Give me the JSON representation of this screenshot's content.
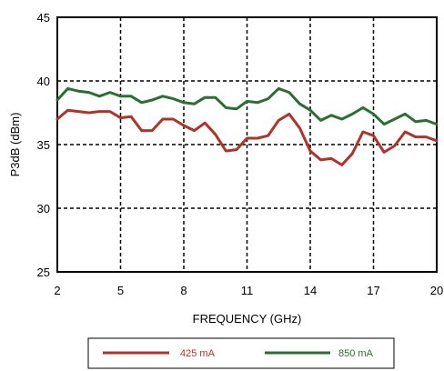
{
  "chart_data": {
    "type": "line",
    "title": "",
    "xlabel": "FREQUENCY (GHz)",
    "ylabel": "P3dB (dBm)",
    "xlim": [
      2,
      20
    ],
    "ylim": [
      25,
      45
    ],
    "xticks": [
      2,
      5,
      8,
      11,
      14,
      17,
      20
    ],
    "yticks": [
      25,
      30,
      35,
      40,
      45
    ],
    "xtick_labels": [
      "2",
      "5",
      "8",
      "11",
      "14",
      "17",
      "20"
    ],
    "ytick_labels": [
      "25",
      "30",
      "35",
      "40",
      "45"
    ],
    "grid": true,
    "legend_position": "bottom",
    "series": [
      {
        "name": "425 mA",
        "color": "#b0332a",
        "x": [
          2,
          2.5,
          3,
          3.5,
          4,
          4.5,
          5,
          5.5,
          6,
          6.5,
          7,
          7.5,
          8,
          8.5,
          9,
          9.5,
          10,
          10.5,
          11,
          11.5,
          12,
          12.5,
          13,
          13.5,
          14,
          14.5,
          15,
          15.5,
          16,
          16.5,
          17,
          17.5,
          18,
          18.5,
          19,
          19.5,
          20
        ],
        "y": [
          37.0,
          37.7,
          37.6,
          37.5,
          37.6,
          37.6,
          37.1,
          37.2,
          36.1,
          36.1,
          37.0,
          37.0,
          36.5,
          36.1,
          36.7,
          35.8,
          34.5,
          34.6,
          35.5,
          35.5,
          35.7,
          36.9,
          37.4,
          36.3,
          34.5,
          33.8,
          33.9,
          33.4,
          34.3,
          36.0,
          35.7,
          34.4,
          34.9,
          36.0,
          35.6,
          35.6,
          35.3
        ]
      },
      {
        "name": "850 mA",
        "color": "#2a6e31",
        "x": [
          2,
          2.5,
          3,
          3.5,
          4,
          4.5,
          5,
          5.5,
          6,
          6.5,
          7,
          7.5,
          8,
          8.5,
          9,
          9.5,
          10,
          10.5,
          11,
          11.5,
          12,
          12.5,
          13,
          13.5,
          14,
          14.5,
          15,
          15.5,
          16,
          16.5,
          17,
          17.5,
          18,
          18.5,
          19,
          19.5,
          20
        ],
        "y": [
          38.5,
          39.4,
          39.2,
          39.1,
          38.8,
          39.1,
          38.8,
          38.8,
          38.3,
          38.5,
          38.8,
          38.6,
          38.3,
          38.2,
          38.7,
          38.7,
          37.9,
          37.8,
          38.4,
          38.3,
          38.6,
          39.4,
          39.1,
          38.2,
          37.7,
          36.9,
          37.3,
          37.0,
          37.4,
          37.9,
          37.4,
          36.6,
          37.0,
          37.4,
          36.8,
          36.9,
          36.6
        ]
      }
    ]
  }
}
